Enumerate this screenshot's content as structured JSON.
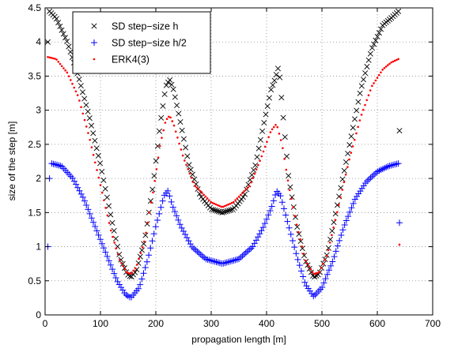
{
  "chart_data": {
    "type": "scatter",
    "title": "",
    "xlabel": "propagation length [m]",
    "ylabel": "size of the step [m]",
    "xlim": [
      0,
      700
    ],
    "ylim": [
      0,
      4.5
    ],
    "xticks": [
      0,
      100,
      200,
      300,
      400,
      500,
      600,
      700
    ],
    "yticks": [
      0,
      0.5,
      1,
      1.5,
      2,
      2.5,
      3,
      3.5,
      4,
      4.5
    ],
    "xtick_labels": [
      "0",
      "100",
      "200",
      "300",
      "400",
      "500",
      "600",
      "700"
    ],
    "ytick_labels": [
      "0",
      "0.5",
      "1",
      "1.5",
      "2",
      "2.5",
      "3",
      "3.5",
      "4",
      "4.5"
    ],
    "grid": true,
    "legend_position": "top-left",
    "series": [
      {
        "name": "SD step−size h",
        "marker": "x",
        "color": "#000000",
        "isolated_points": [
          [
            5,
            4.0
          ],
          [
            640,
            2.7
          ]
        ],
        "curve": [
          [
            8,
            4.45
          ],
          [
            20,
            4.35
          ],
          [
            40,
            4.0
          ],
          [
            60,
            3.5
          ],
          [
            80,
            2.9
          ],
          [
            100,
            2.2
          ],
          [
            120,
            1.4
          ],
          [
            135,
            0.85
          ],
          [
            148,
            0.6
          ],
          [
            155,
            0.55
          ],
          [
            165,
            0.65
          ],
          [
            180,
            1.1
          ],
          [
            195,
            1.9
          ],
          [
            208,
            2.8
          ],
          [
            218,
            3.35
          ],
          [
            225,
            3.45
          ],
          [
            232,
            3.3
          ],
          [
            245,
            2.8
          ],
          [
            260,
            2.2
          ],
          [
            280,
            1.75
          ],
          [
            300,
            1.55
          ],
          [
            320,
            1.5
          ],
          [
            340,
            1.55
          ],
          [
            360,
            1.75
          ],
          [
            380,
            2.2
          ],
          [
            395,
            2.8
          ],
          [
            408,
            3.3
          ],
          [
            415,
            3.45
          ],
          [
            422,
            3.65
          ],
          [
            430,
            2.9
          ],
          [
            440,
            2.0
          ],
          [
            455,
            1.3
          ],
          [
            470,
            0.8
          ],
          [
            485,
            0.55
          ],
          [
            495,
            0.6
          ],
          [
            510,
            0.9
          ],
          [
            530,
            1.7
          ],
          [
            550,
            2.5
          ],
          [
            570,
            3.3
          ],
          [
            590,
            3.9
          ],
          [
            610,
            4.25
          ],
          [
            625,
            4.35
          ],
          [
            638,
            4.45
          ]
        ]
      },
      {
        "name": "SD step−size h/2",
        "marker": "+",
        "color": "#0000ff",
        "isolated_points": [
          [
            5,
            1.0
          ],
          [
            8,
            2.0
          ],
          [
            640,
            1.35
          ]
        ],
        "curve": [
          [
            12,
            2.22
          ],
          [
            30,
            2.18
          ],
          [
            50,
            2.0
          ],
          [
            70,
            1.7
          ],
          [
            90,
            1.3
          ],
          [
            110,
            0.9
          ],
          [
            130,
            0.5
          ],
          [
            145,
            0.3
          ],
          [
            155,
            0.25
          ],
          [
            170,
            0.4
          ],
          [
            185,
            0.8
          ],
          [
            200,
            1.3
          ],
          [
            215,
            1.75
          ],
          [
            222,
            1.82
          ],
          [
            230,
            1.6
          ],
          [
            245,
            1.3
          ],
          [
            265,
            1.0
          ],
          [
            290,
            0.82
          ],
          [
            320,
            0.75
          ],
          [
            350,
            0.82
          ],
          [
            375,
            1.0
          ],
          [
            395,
            1.3
          ],
          [
            410,
            1.6
          ],
          [
            418,
            1.82
          ],
          [
            425,
            1.75
          ],
          [
            440,
            1.3
          ],
          [
            455,
            0.85
          ],
          [
            470,
            0.45
          ],
          [
            485,
            0.27
          ],
          [
            500,
            0.4
          ],
          [
            520,
            0.8
          ],
          [
            540,
            1.3
          ],
          [
            560,
            1.7
          ],
          [
            580,
            1.95
          ],
          [
            600,
            2.1
          ],
          [
            620,
            2.18
          ],
          [
            638,
            2.22
          ]
        ]
      },
      {
        "name": "ERK4(3)",
        "marker": ".",
        "color": "#ff0000",
        "isolated_points": [
          [
            640,
            1.03
          ]
        ],
        "curve": [
          [
            5,
            3.78
          ],
          [
            20,
            3.75
          ],
          [
            40,
            3.55
          ],
          [
            60,
            3.2
          ],
          [
            80,
            2.6
          ],
          [
            100,
            1.9
          ],
          [
            120,
            1.2
          ],
          [
            135,
            0.8
          ],
          [
            148,
            0.62
          ],
          [
            155,
            0.6
          ],
          [
            165,
            0.7
          ],
          [
            180,
            1.1
          ],
          [
            195,
            1.8
          ],
          [
            208,
            2.5
          ],
          [
            218,
            2.85
          ],
          [
            225,
            2.92
          ],
          [
            232,
            2.8
          ],
          [
            250,
            2.3
          ],
          [
            270,
            1.9
          ],
          [
            300,
            1.65
          ],
          [
            320,
            1.58
          ],
          [
            340,
            1.65
          ],
          [
            370,
            1.9
          ],
          [
            390,
            2.3
          ],
          [
            408,
            2.7
          ],
          [
            418,
            2.8
          ],
          [
            428,
            2.5
          ],
          [
            440,
            1.9
          ],
          [
            455,
            1.3
          ],
          [
            470,
            0.8
          ],
          [
            485,
            0.6
          ],
          [
            495,
            0.62
          ],
          [
            510,
            0.9
          ],
          [
            530,
            1.6
          ],
          [
            550,
            2.3
          ],
          [
            570,
            2.9
          ],
          [
            590,
            3.35
          ],
          [
            610,
            3.6
          ],
          [
            625,
            3.7
          ],
          [
            638,
            3.75
          ]
        ]
      }
    ]
  }
}
